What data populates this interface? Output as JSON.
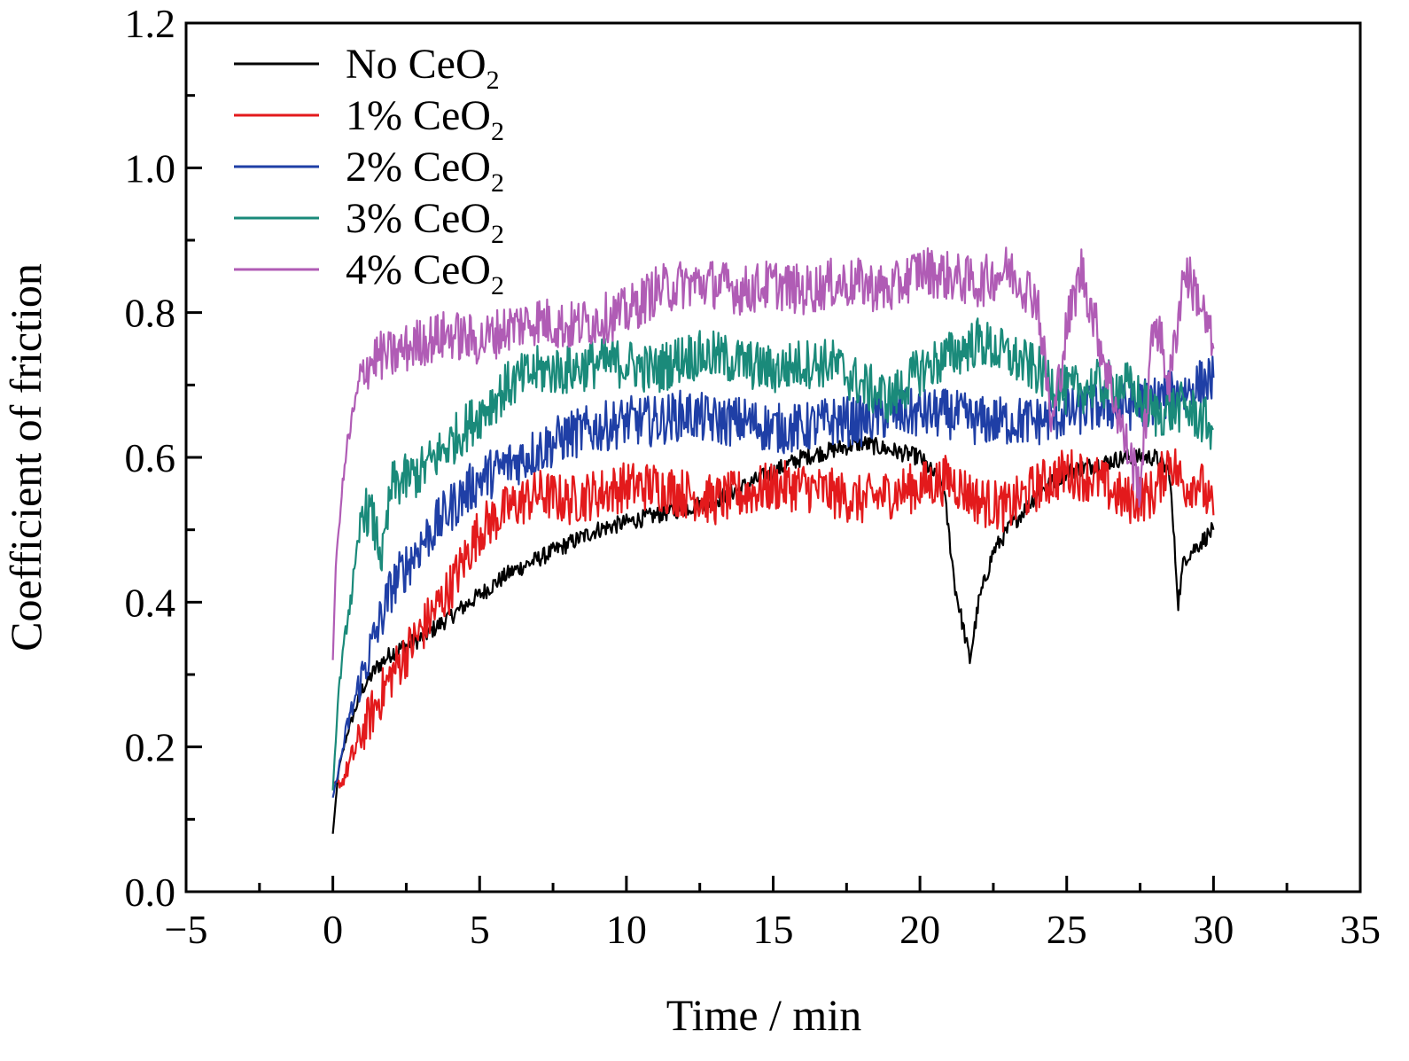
{
  "chart_data": {
    "type": "line",
    "xlabel": "Time / min",
    "ylabel": "Coefficient of friction",
    "xlim": [
      -5,
      35
    ],
    "ylim": [
      0.0,
      1.2
    ],
    "xticks": [
      "−5",
      "0",
      "5",
      "10",
      "15",
      "20",
      "25",
      "30",
      "35"
    ],
    "yticks": [
      "0.0",
      "0.2",
      "0.4",
      "0.6",
      "0.8",
      "1.0",
      "1.2"
    ],
    "legend_position": "top-left",
    "series": [
      {
        "name": "No CeO",
        "name_sub": "2",
        "color": "#000000",
        "x": [
          0,
          0.2,
          0.5,
          1,
          1.5,
          2,
          3,
          4,
          5,
          6,
          7,
          8,
          9,
          10,
          11,
          12,
          13,
          14,
          15,
          16,
          17,
          18,
          19,
          20,
          20.8,
          21.2,
          21.7,
          22,
          22.5,
          23,
          24,
          25,
          26,
          27,
          28,
          28.5,
          28.8,
          29,
          29.5,
          30
        ],
        "y": [
          0.08,
          0.17,
          0.22,
          0.28,
          0.31,
          0.33,
          0.35,
          0.38,
          0.41,
          0.44,
          0.46,
          0.48,
          0.5,
          0.51,
          0.52,
          0.53,
          0.54,
          0.56,
          0.58,
          0.6,
          0.61,
          0.62,
          0.61,
          0.6,
          0.56,
          0.42,
          0.32,
          0.4,
          0.47,
          0.5,
          0.55,
          0.58,
          0.59,
          0.6,
          0.6,
          0.58,
          0.4,
          0.46,
          0.48,
          0.5
        ]
      },
      {
        "name": "1% CeO",
        "name_sub": "2",
        "color": "#e31a1c",
        "x": [
          0,
          0.3,
          0.6,
          1,
          1.5,
          2,
          3,
          4,
          5,
          6,
          7,
          8,
          9,
          10,
          11,
          12,
          13,
          14,
          15,
          16,
          17,
          18,
          19,
          20,
          21,
          22,
          23,
          24,
          25,
          26,
          27,
          28,
          28.5,
          29,
          29.5,
          30
        ],
        "y": [
          0.15,
          0.15,
          0.18,
          0.22,
          0.26,
          0.3,
          0.36,
          0.42,
          0.5,
          0.53,
          0.55,
          0.54,
          0.55,
          0.56,
          0.56,
          0.55,
          0.54,
          0.55,
          0.56,
          0.56,
          0.55,
          0.54,
          0.55,
          0.56,
          0.57,
          0.54,
          0.53,
          0.56,
          0.58,
          0.57,
          0.54,
          0.55,
          0.6,
          0.56,
          0.57,
          0.52
        ]
      },
      {
        "name": "2% CeO",
        "name_sub": "2",
        "color": "#1f3fa6",
        "x": [
          0,
          0.2,
          0.5,
          1,
          1.5,
          2,
          3,
          4,
          5,
          6,
          7,
          8,
          9,
          10,
          11,
          12,
          13,
          14,
          15,
          16,
          17,
          18,
          19,
          20,
          21,
          22,
          23,
          24,
          25,
          26,
          27,
          28,
          29,
          30
        ],
        "y": [
          0.13,
          0.17,
          0.23,
          0.3,
          0.36,
          0.42,
          0.48,
          0.53,
          0.57,
          0.59,
          0.61,
          0.63,
          0.64,
          0.65,
          0.65,
          0.66,
          0.65,
          0.65,
          0.64,
          0.64,
          0.65,
          0.65,
          0.66,
          0.66,
          0.66,
          0.65,
          0.65,
          0.65,
          0.66,
          0.67,
          0.67,
          0.68,
          0.69,
          0.71
        ]
      },
      {
        "name": "3% CeO",
        "name_sub": "2",
        "color": "#1a8a7a",
        "x": [
          0,
          0.2,
          0.5,
          0.8,
          1,
          1.3,
          1.7,
          2,
          3,
          4,
          5,
          6,
          7,
          8,
          9,
          10,
          11,
          12,
          13,
          14,
          15,
          16,
          17,
          18,
          19,
          20,
          21,
          22,
          23,
          24,
          25,
          26,
          27,
          28,
          29,
          30
        ],
        "y": [
          0.14,
          0.28,
          0.38,
          0.45,
          0.53,
          0.52,
          0.46,
          0.56,
          0.58,
          0.62,
          0.66,
          0.7,
          0.72,
          0.72,
          0.73,
          0.73,
          0.72,
          0.74,
          0.74,
          0.73,
          0.72,
          0.73,
          0.73,
          0.7,
          0.68,
          0.72,
          0.74,
          0.76,
          0.74,
          0.72,
          0.69,
          0.7,
          0.7,
          0.66,
          0.67,
          0.64
        ]
      },
      {
        "name": "4% CeO",
        "name_sub": "2",
        "color": "#b05cb5",
        "x": [
          0,
          0.1,
          0.3,
          0.5,
          1,
          1.5,
          2,
          3,
          4,
          5,
          6,
          7,
          8,
          9,
          10,
          11,
          12,
          13,
          14,
          15,
          16,
          17,
          18,
          19,
          20,
          21,
          22,
          23,
          24,
          24.5,
          25,
          25.5,
          26,
          27,
          27.5,
          28,
          28.5,
          29,
          29.5,
          30
        ],
        "y": [
          0.32,
          0.45,
          0.55,
          0.62,
          0.72,
          0.74,
          0.74,
          0.76,
          0.77,
          0.76,
          0.78,
          0.79,
          0.78,
          0.79,
          0.8,
          0.83,
          0.84,
          0.84,
          0.83,
          0.84,
          0.83,
          0.84,
          0.84,
          0.83,
          0.86,
          0.85,
          0.84,
          0.86,
          0.82,
          0.64,
          0.78,
          0.86,
          0.78,
          0.62,
          0.56,
          0.8,
          0.7,
          0.86,
          0.82,
          0.75
        ]
      }
    ]
  }
}
